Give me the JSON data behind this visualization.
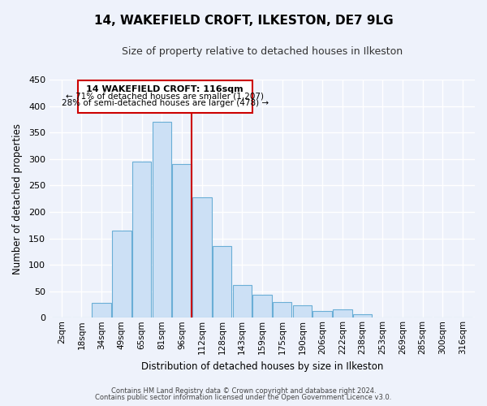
{
  "title": "14, WAKEFIELD CROFT, ILKESTON, DE7 9LG",
  "subtitle": "Size of property relative to detached houses in Ilkeston",
  "xlabel": "Distribution of detached houses by size in Ilkeston",
  "ylabel": "Number of detached properties",
  "bar_labels": [
    "2sqm",
    "18sqm",
    "34sqm",
    "49sqm",
    "65sqm",
    "81sqm",
    "96sqm",
    "112sqm",
    "128sqm",
    "143sqm",
    "159sqm",
    "175sqm",
    "190sqm",
    "206sqm",
    "222sqm",
    "238sqm",
    "253sqm",
    "269sqm",
    "285sqm",
    "300sqm",
    "316sqm"
  ],
  "bar_heights": [
    0,
    0,
    28,
    165,
    295,
    370,
    290,
    228,
    135,
    62,
    43,
    30,
    23,
    13,
    15,
    7,
    0,
    0,
    0,
    0,
    0
  ],
  "bar_face_color": "#cce0f5",
  "bar_edge_color": "#6aaed6",
  "highlight_line_index": 6,
  "highlight_color": "#cc0000",
  "annotation_title": "14 WAKEFIELD CROFT: 116sqm",
  "annotation_line1": "← 71% of detached houses are smaller (1,207)",
  "annotation_line2": "28% of semi-detached houses are larger (478) →",
  "annotation_box_color": "#ffffff",
  "annotation_box_edge": "#cc0000",
  "ylim": [
    0,
    450
  ],
  "yticks": [
    0,
    50,
    100,
    150,
    200,
    250,
    300,
    350,
    400,
    450
  ],
  "footer1": "Contains HM Land Registry data © Crown copyright and database right 2024.",
  "footer2": "Contains public sector information licensed under the Open Government Licence v3.0.",
  "bg_color": "#eef2fb",
  "grid_color": "#ffffff"
}
